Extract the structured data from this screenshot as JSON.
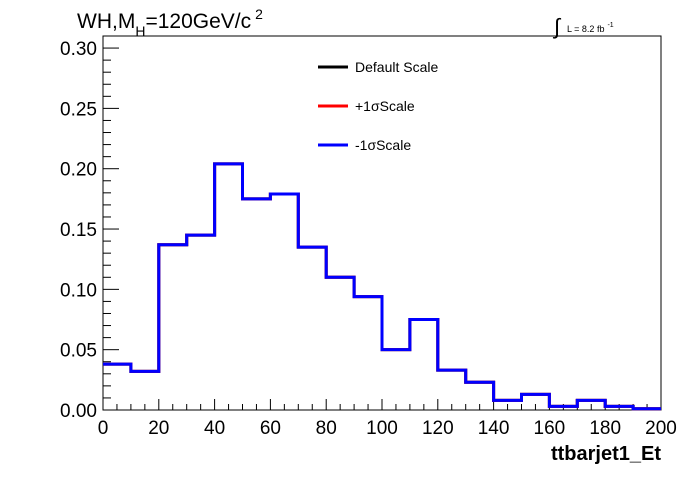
{
  "chart_data": {
    "type": "line",
    "title_main": "WH,M",
    "title_sub": "H",
    "title_rest": "=120GeV/c",
    "title_sup": "2",
    "lumi_text": "L = 8.2 fb",
    "lumi_sup": "-1",
    "lumi_integral": "∫",
    "xlabel": "ttbarjet1_Et",
    "ylabel": "",
    "xlim": [
      0,
      200
    ],
    "ylim": [
      0,
      0.31
    ],
    "x_ticks": [
      "0",
      "20",
      "40",
      "60",
      "80",
      "100",
      "120",
      "140",
      "160",
      "180",
      "200"
    ],
    "y_ticks": [
      "0.00",
      "0.05",
      "0.10",
      "0.15",
      "0.20",
      "0.25",
      "0.30"
    ],
    "bin_edges": [
      0,
      10,
      20,
      30,
      40,
      50,
      60,
      70,
      80,
      90,
      100,
      110,
      120,
      130,
      140,
      150,
      160,
      170,
      180,
      190,
      200
    ],
    "series": [
      {
        "name": "Default Scale",
        "color": "#000000",
        "values": [
          0.038,
          0.032,
          0.137,
          0.145,
          0.204,
          0.175,
          0.179,
          0.135,
          0.11,
          0.094,
          0.05,
          0.075,
          0.033,
          0.023,
          0.008,
          0.013,
          0.003,
          0.008,
          0.003,
          0.001
        ]
      },
      {
        "name": "+1σScale",
        "color": "#ff0000",
        "values": [
          0.038,
          0.032,
          0.137,
          0.145,
          0.204,
          0.175,
          0.179,
          0.135,
          0.11,
          0.094,
          0.05,
          0.075,
          0.033,
          0.023,
          0.008,
          0.013,
          0.003,
          0.008,
          0.003,
          0.001
        ]
      },
      {
        "name": "-1σScale",
        "color": "#0000ff",
        "values": [
          0.038,
          0.032,
          0.137,
          0.145,
          0.204,
          0.175,
          0.179,
          0.135,
          0.11,
          0.094,
          0.05,
          0.075,
          0.033,
          0.023,
          0.008,
          0.013,
          0.003,
          0.008,
          0.003,
          0.001
        ]
      }
    ],
    "legend_position": "top-center",
    "grid": false
  }
}
